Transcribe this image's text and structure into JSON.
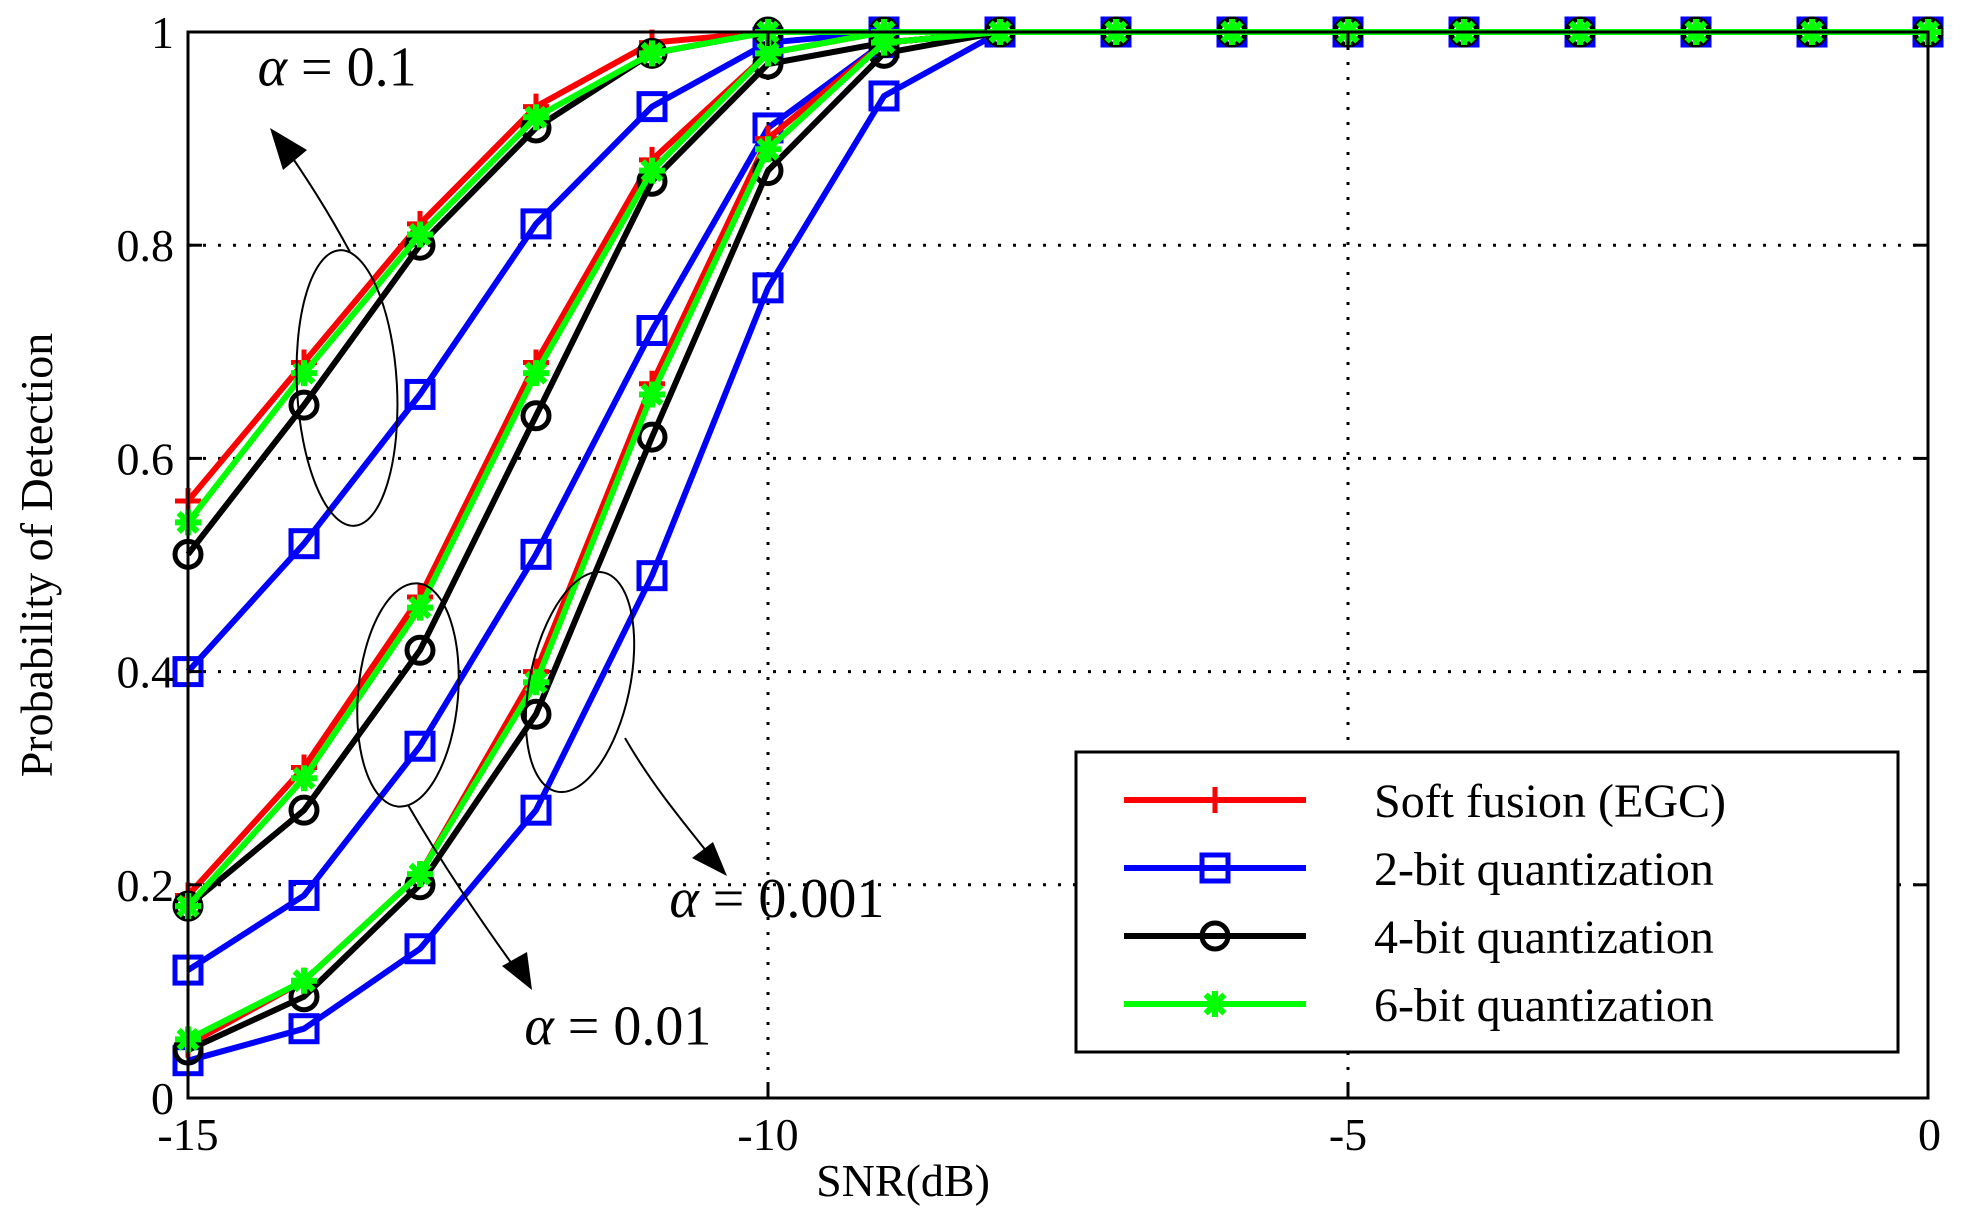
{
  "chart_data": {
    "type": "line",
    "title": "",
    "xlabel": "SNR(dB)",
    "ylabel": "Probability of Detection",
    "xlim": [
      -15,
      0
    ],
    "ylim": [
      0,
      1
    ],
    "x": [
      -15,
      -14,
      -13,
      -12,
      -11,
      -10,
      -9,
      -8,
      -7,
      -6,
      -5,
      -4,
      -3,
      -2,
      -1,
      0
    ],
    "xticks": [
      -15,
      -10,
      -5,
      0
    ],
    "xtick_labels": [
      "-15",
      "-10",
      "-5",
      "0"
    ],
    "yticks": [
      0,
      0.2,
      0.4,
      0.6,
      0.8,
      1
    ],
    "ytick_labels": [
      "0",
      "0.2",
      "0.4",
      "0.6",
      "0.8",
      "1"
    ],
    "grid": true,
    "legend_position": "bottom-right",
    "series": [
      {
        "name": "Soft fusion (EGC)",
        "color": "#ff0000",
        "marker": "plus",
        "group": "alpha=0.1",
        "values": [
          0.56,
          0.69,
          0.82,
          0.93,
          0.99,
          1,
          1,
          1,
          1,
          1,
          1,
          1,
          1,
          1,
          1,
          1
        ]
      },
      {
        "name": "2-bit quantization",
        "color": "#0000ff",
        "marker": "square",
        "group": "alpha=0.1",
        "values": [
          0.4,
          0.52,
          0.66,
          0.82,
          0.93,
          0.99,
          1,
          1,
          1,
          1,
          1,
          1,
          1,
          1,
          1,
          1
        ]
      },
      {
        "name": "4-bit quantization",
        "color": "#000000",
        "marker": "circle",
        "group": "alpha=0.1",
        "values": [
          0.51,
          0.65,
          0.8,
          0.91,
          0.98,
          1,
          1,
          1,
          1,
          1,
          1,
          1,
          1,
          1,
          1,
          1
        ]
      },
      {
        "name": "6-bit quantization",
        "color": "#00ff00",
        "marker": "asterisk",
        "group": "alpha=0.1",
        "values": [
          0.54,
          0.68,
          0.81,
          0.92,
          0.98,
          1,
          1,
          1,
          1,
          1,
          1,
          1,
          1,
          1,
          1,
          1
        ]
      },
      {
        "name": "Soft fusion (EGC)",
        "color": "#ff0000",
        "marker": "plus",
        "group": "alpha=0.01",
        "values": [
          0.19,
          0.31,
          0.47,
          0.69,
          0.88,
          0.98,
          1,
          1,
          1,
          1,
          1,
          1,
          1,
          1,
          1,
          1
        ]
      },
      {
        "name": "2-bit quantization",
        "color": "#0000ff",
        "marker": "square",
        "group": "alpha=0.01",
        "values": [
          0.12,
          0.19,
          0.33,
          0.51,
          0.72,
          0.91,
          0.99,
          1,
          1,
          1,
          1,
          1,
          1,
          1,
          1,
          1
        ]
      },
      {
        "name": "4-bit quantization",
        "color": "#000000",
        "marker": "circle",
        "group": "alpha=0.01",
        "values": [
          0.18,
          0.27,
          0.42,
          0.64,
          0.86,
          0.97,
          0.99,
          1,
          1,
          1,
          1,
          1,
          1,
          1,
          1,
          1
        ]
      },
      {
        "name": "6-bit quantization",
        "color": "#00ff00",
        "marker": "asterisk",
        "group": "alpha=0.01",
        "values": [
          0.18,
          0.3,
          0.46,
          0.68,
          0.87,
          0.98,
          1,
          1,
          1,
          1,
          1,
          1,
          1,
          1,
          1,
          1
        ]
      },
      {
        "name": "Soft fusion (EGC)",
        "color": "#ff0000",
        "marker": "plus",
        "group": "alpha=0.001",
        "values": [
          0.05,
          0.11,
          0.21,
          0.4,
          0.67,
          0.9,
          0.99,
          1,
          1,
          1,
          1,
          1,
          1,
          1,
          1,
          1
        ]
      },
      {
        "name": "2-bit quantization",
        "color": "#0000ff",
        "marker": "square",
        "group": "alpha=0.001",
        "values": [
          0.035,
          0.065,
          0.14,
          0.27,
          0.49,
          0.76,
          0.94,
          1,
          1,
          1,
          1,
          1,
          1,
          1,
          1,
          1
        ]
      },
      {
        "name": "4-bit quantization",
        "color": "#000000",
        "marker": "circle",
        "group": "alpha=0.001",
        "values": [
          0.045,
          0.095,
          0.2,
          0.36,
          0.62,
          0.87,
          0.98,
          1,
          1,
          1,
          1,
          1,
          1,
          1,
          1,
          1
        ]
      },
      {
        "name": "6-bit quantization",
        "color": "#00ff00",
        "marker": "asterisk",
        "group": "alpha=0.001",
        "values": [
          0.055,
          0.11,
          0.21,
          0.39,
          0.66,
          0.89,
          0.99,
          1,
          1,
          1,
          1,
          1,
          1,
          1,
          1,
          1
        ]
      }
    ],
    "legend": [
      {
        "label": "Soft fusion (EGC)",
        "color": "#ff0000",
        "marker": "plus"
      },
      {
        "label": "2-bit quantization",
        "color": "#0000ff",
        "marker": "square"
      },
      {
        "label": "4-bit quantization",
        "color": "#000000",
        "marker": "circle"
      },
      {
        "label": "6-bit quantization",
        "color": "#00ff00",
        "marker": "asterisk"
      }
    ],
    "annotations": [
      {
        "symbol": "α",
        "text": " = 0.1",
        "x": -14.4,
        "y": 0.95,
        "curve_group": "alpha=0.1"
      },
      {
        "symbol": "α",
        "text": " = 0.01",
        "x": -12.1,
        "y": 0.05,
        "curve_group": "alpha=0.01"
      },
      {
        "symbol": "α",
        "text": " = 0.001",
        "x": -10.85,
        "y": 0.17,
        "curve_group": "alpha=0.001"
      }
    ]
  }
}
